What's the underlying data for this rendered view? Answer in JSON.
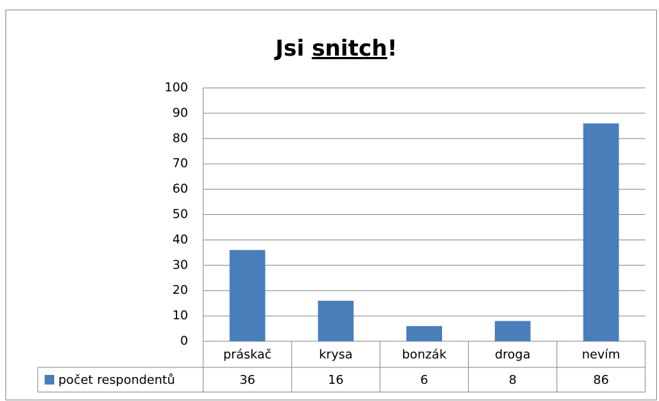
{
  "chart_data": {
    "type": "bar",
    "title": [
      {
        "text": "Jsi "
      },
      {
        "text": "snitch",
        "underline": true
      },
      {
        "text": "!"
      }
    ],
    "categories": [
      "práskač",
      "krysa",
      "bonzák",
      "droga",
      "nevím"
    ],
    "series": [
      {
        "name": "počet respondentů",
        "color": "#4a7ebb",
        "values": [
          36,
          16,
          6,
          8,
          86
        ]
      }
    ],
    "ylim": [
      0,
      100
    ],
    "yticks": [
      0,
      10,
      20,
      30,
      40,
      50,
      60,
      70,
      80,
      90,
      100
    ],
    "grid": true,
    "data_table": true
  }
}
